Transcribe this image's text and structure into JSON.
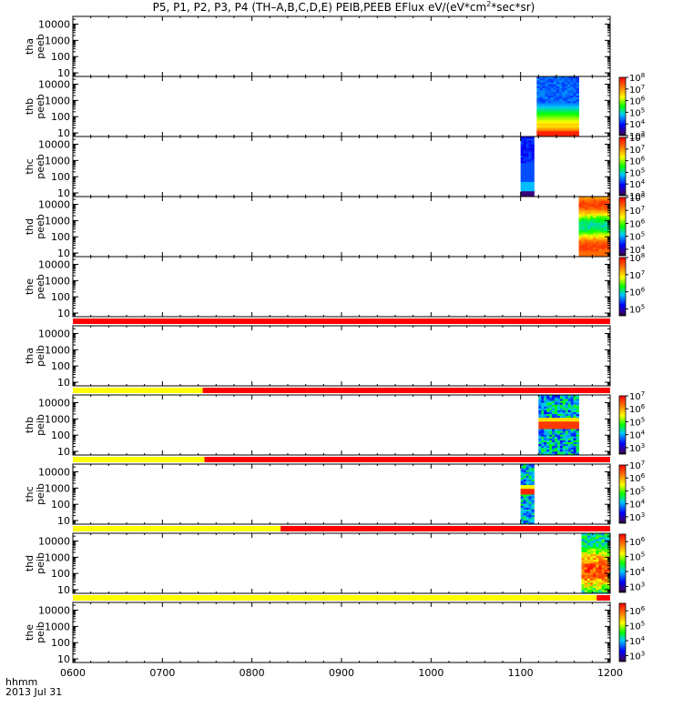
{
  "title": {
    "main": "P5, P1, P2, P3, P4 (TH–A,B,C,D,E) PEIB,PEEB EFlux eV/(eV*cm",
    "exponent": "2",
    "suffix": "*sec*sr)"
  },
  "time_axis": {
    "prefix": "hhmm",
    "date": "2013 Jul 31",
    "ticks": [
      "0600",
      "0700",
      "0800",
      "0900",
      "1000",
      "1100",
      "1200"
    ]
  },
  "colors": {
    "bar_yellow": "#ffff00",
    "bar_red": "#ff0000",
    "frame": "#000000"
  },
  "chart_data": {
    "type": "heatmap",
    "x_unit": "hhmm",
    "x_range": [
      "0600",
      "1200"
    ],
    "y_scale": "log",
    "y_range": [
      6,
      30000
    ],
    "y_ticks": [
      "10",
      "100",
      "1000",
      "10000"
    ],
    "panels": [
      {
        "probe": "tha",
        "product": "peeb",
        "ylabel": [
          "tha",
          "peeb"
        ],
        "data_spans": [],
        "colorbar": null
      },
      {
        "probe": "thb",
        "product": "peeb",
        "ylabel": [
          "thb",
          "peeb"
        ],
        "data_spans": [
          {
            "start": "1118",
            "end": "1165",
            "profile": "peeb_b"
          }
        ],
        "colorbar": {
          "base": "10",
          "exponents": [
            "3",
            "4",
            "5",
            "6",
            "7",
            "8"
          ],
          "range": [
            3,
            8
          ]
        }
      },
      {
        "probe": "thc",
        "product": "peeb",
        "ylabel": [
          "thc",
          "peeb"
        ],
        "data_spans": [
          {
            "start": "1100",
            "end": "1115",
            "profile": "peeb_c"
          }
        ],
        "colorbar": {
          "base": "10",
          "exponents": [
            "3",
            "4",
            "5",
            "6",
            "7",
            "8"
          ],
          "range": [
            3,
            8
          ]
        }
      },
      {
        "probe": "thd",
        "product": "peeb",
        "ylabel": [
          "thd",
          "peeb"
        ],
        "data_spans": [
          {
            "start": "1165",
            "end": "1200",
            "profile": "peeb_d"
          }
        ],
        "colorbar": {
          "base": "10",
          "exponents": [
            "4",
            "5",
            "6",
            "7",
            "8"
          ],
          "range": [
            3.5,
            8
          ]
        }
      },
      {
        "probe": "the",
        "product": "peeb",
        "ylabel": [
          "the",
          "peeb"
        ],
        "data_spans": [],
        "colorbar": {
          "base": "10",
          "exponents": [
            "5",
            "6",
            "7",
            "8"
          ],
          "range": [
            4.6,
            8
          ]
        }
      },
      {
        "probe": "tha",
        "product": "peib",
        "ylabel": [
          "tha",
          "peib"
        ],
        "data_spans": [],
        "colorbar": null
      },
      {
        "probe": "thb",
        "product": "peib",
        "ylabel": [
          "thb",
          "peib"
        ],
        "data_spans": [
          {
            "start": "1120",
            "end": "1165",
            "profile": "peib_b"
          }
        ],
        "colorbar": {
          "base": "10",
          "exponents": [
            "3",
            "4",
            "5",
            "6",
            "7"
          ],
          "range": [
            2.5,
            7
          ]
        }
      },
      {
        "probe": "thc",
        "product": "peib",
        "ylabel": [
          "thc",
          "peib"
        ],
        "data_spans": [
          {
            "start": "1100",
            "end": "1115",
            "profile": "peib_c"
          }
        ],
        "colorbar": {
          "base": "10",
          "exponents": [
            "3",
            "4",
            "5",
            "6",
            "7"
          ],
          "range": [
            2.5,
            7
          ]
        }
      },
      {
        "probe": "thd",
        "product": "peib",
        "ylabel": [
          "thd",
          "peib"
        ],
        "data_spans": [
          {
            "start": "1168",
            "end": "1200",
            "profile": "peib_d"
          }
        ],
        "colorbar": {
          "base": "10",
          "exponents": [
            "3",
            "4",
            "5",
            "6"
          ],
          "range": [
            2.6,
            6.5
          ]
        }
      },
      {
        "probe": "the",
        "product": "peib",
        "ylabel": [
          "the",
          "peib"
        ],
        "data_spans": [],
        "colorbar": {
          "base": "10",
          "exponents": [
            "3",
            "4",
            "5",
            "6"
          ],
          "range": [
            2.6,
            6.5
          ]
        }
      }
    ],
    "quality_bars": [
      {
        "after_panel": 4,
        "segments": [
          {
            "start": "0600",
            "end": "1200",
            "color": "red"
          }
        ]
      },
      {
        "after_panel": 5,
        "segments": [
          {
            "start": "0600",
            "end": "0745",
            "color": "yellow"
          },
          {
            "start": "0745",
            "end": "1200",
            "color": "red"
          }
        ]
      },
      {
        "after_panel": 6,
        "segments": [
          {
            "start": "0600",
            "end": "0747",
            "color": "yellow"
          },
          {
            "start": "0747",
            "end": "1200",
            "color": "red"
          }
        ]
      },
      {
        "after_panel": 7,
        "segments": [
          {
            "start": "0600",
            "end": "0832",
            "color": "yellow"
          },
          {
            "start": "0832",
            "end": "1200",
            "color": "red"
          }
        ]
      },
      {
        "after_panel": 8,
        "segments": [
          {
            "start": "0600",
            "end": "1185",
            "color": "yellow"
          },
          {
            "start": "1185",
            "end": "1200",
            "color": "red"
          }
        ]
      }
    ]
  }
}
